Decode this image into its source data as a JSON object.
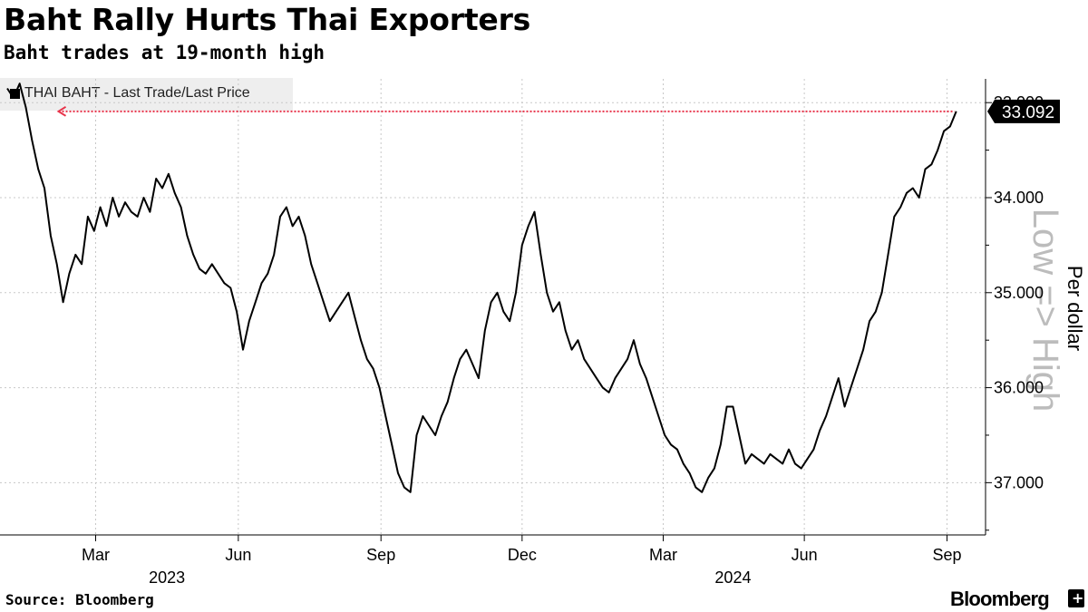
{
  "header": {
    "title": "Baht Rally Hurts Thai Exporters",
    "subtitle": "Baht trades at 19-month high"
  },
  "legend": {
    "label": "THAI BAHT - Last Trade/Last Price"
  },
  "footer": {
    "source": "Source: Bloomberg",
    "brand": "Bloomberg",
    "brand_icon": "+"
  },
  "colors": {
    "line": "#000000",
    "reference": "#e8334a",
    "grid": "#c8c8c8",
    "badge_bg": "#000000",
    "watermark": "#bcbcbc"
  },
  "chart_data": {
    "type": "line",
    "title": "Baht Rally Hurts Thai Exporters",
    "subtitle": "Baht trades at 19-month high",
    "ylabel": "Per dollar",
    "watermark": "Low => High",
    "y_inverted": true,
    "ylim": [
      32.75,
      37.55
    ],
    "yticks": [
      33.0,
      34.0,
      35.0,
      36.0,
      37.0
    ],
    "ytick_labels": [
      "33.000",
      "34.000",
      "35.000",
      "36.000",
      "37.000"
    ],
    "xlim": [
      0,
      618
    ],
    "month_ticks": [
      {
        "label": "Mar",
        "x": 57
      },
      {
        "label": "Jun",
        "x": 149
      },
      {
        "label": "Sep",
        "x": 241
      },
      {
        "label": "Dec",
        "x": 332
      },
      {
        "label": "Mar",
        "x": 423
      },
      {
        "label": "Jun",
        "x": 514
      },
      {
        "label": "Sep",
        "x": 606
      }
    ],
    "year_labels": [
      {
        "label": "2023",
        "x": 103
      },
      {
        "label": "2024",
        "x": 468
      }
    ],
    "last_value": 33.092,
    "last_value_label": "33.092",
    "reference_line": {
      "value": 33.092,
      "x_start": 12,
      "x_end": 612
    },
    "series": [
      {
        "name": "THAI BAHT - Last Trade/Last Price",
        "points": [
          [
            0,
            32.85
          ],
          [
            4,
            32.95
          ],
          [
            8,
            32.8
          ],
          [
            12,
            33.05
          ],
          [
            16,
            33.4
          ],
          [
            20,
            33.7
          ],
          [
            24,
            33.9
          ],
          [
            28,
            34.4
          ],
          [
            32,
            34.7
          ],
          [
            36,
            35.1
          ],
          [
            40,
            34.8
          ],
          [
            44,
            34.6
          ],
          [
            48,
            34.7
          ],
          [
            52,
            34.2
          ],
          [
            56,
            34.35
          ],
          [
            60,
            34.1
          ],
          [
            64,
            34.3
          ],
          [
            68,
            34.0
          ],
          [
            72,
            34.2
          ],
          [
            76,
            34.05
          ],
          [
            80,
            34.15
          ],
          [
            84,
            34.2
          ],
          [
            88,
            34.0
          ],
          [
            92,
            34.15
          ],
          [
            96,
            33.8
          ],
          [
            100,
            33.9
          ],
          [
            104,
            33.75
          ],
          [
            108,
            33.95
          ],
          [
            112,
            34.1
          ],
          [
            116,
            34.4
          ],
          [
            120,
            34.6
          ],
          [
            124,
            34.75
          ],
          [
            128,
            34.8
          ],
          [
            132,
            34.7
          ],
          [
            136,
            34.8
          ],
          [
            140,
            34.9
          ],
          [
            144,
            34.95
          ],
          [
            148,
            35.2
          ],
          [
            152,
            35.6
          ],
          [
            156,
            35.3
          ],
          [
            160,
            35.1
          ],
          [
            164,
            34.9
          ],
          [
            168,
            34.8
          ],
          [
            172,
            34.6
          ],
          [
            176,
            34.2
          ],
          [
            180,
            34.1
          ],
          [
            184,
            34.3
          ],
          [
            188,
            34.2
          ],
          [
            192,
            34.4
          ],
          [
            196,
            34.7
          ],
          [
            200,
            34.9
          ],
          [
            204,
            35.1
          ],
          [
            208,
            35.3
          ],
          [
            212,
            35.2
          ],
          [
            216,
            35.1
          ],
          [
            220,
            35.0
          ],
          [
            224,
            35.25
          ],
          [
            228,
            35.5
          ],
          [
            232,
            35.7
          ],
          [
            236,
            35.8
          ],
          [
            240,
            36.0
          ],
          [
            244,
            36.3
          ],
          [
            248,
            36.6
          ],
          [
            252,
            36.9
          ],
          [
            256,
            37.05
          ],
          [
            260,
            37.1
          ],
          [
            264,
            36.5
          ],
          [
            268,
            36.3
          ],
          [
            272,
            36.4
          ],
          [
            276,
            36.5
          ],
          [
            280,
            36.3
          ],
          [
            284,
            36.15
          ],
          [
            288,
            35.9
          ],
          [
            292,
            35.7
          ],
          [
            296,
            35.6
          ],
          [
            300,
            35.75
          ],
          [
            304,
            35.9
          ],
          [
            308,
            35.4
          ],
          [
            312,
            35.1
          ],
          [
            316,
            35.0
          ],
          [
            320,
            35.2
          ],
          [
            324,
            35.3
          ],
          [
            328,
            35.0
          ],
          [
            332,
            34.5
          ],
          [
            336,
            34.3
          ],
          [
            340,
            34.15
          ],
          [
            344,
            34.6
          ],
          [
            348,
            35.0
          ],
          [
            352,
            35.2
          ],
          [
            356,
            35.1
          ],
          [
            360,
            35.4
          ],
          [
            364,
            35.6
          ],
          [
            368,
            35.5
          ],
          [
            372,
            35.7
          ],
          [
            376,
            35.8
          ],
          [
            380,
            35.9
          ],
          [
            384,
            36.0
          ],
          [
            388,
            36.05
          ],
          [
            392,
            35.9
          ],
          [
            396,
            35.8
          ],
          [
            400,
            35.7
          ],
          [
            404,
            35.5
          ],
          [
            408,
            35.75
          ],
          [
            412,
            35.9
          ],
          [
            416,
            36.1
          ],
          [
            420,
            36.3
          ],
          [
            424,
            36.5
          ],
          [
            428,
            36.6
          ],
          [
            432,
            36.65
          ],
          [
            436,
            36.8
          ],
          [
            440,
            36.9
          ],
          [
            444,
            37.05
          ],
          [
            448,
            37.1
          ],
          [
            452,
            36.95
          ],
          [
            456,
            36.85
          ],
          [
            460,
            36.6
          ],
          [
            464,
            36.2
          ],
          [
            468,
            36.2
          ],
          [
            472,
            36.5
          ],
          [
            476,
            36.8
          ],
          [
            480,
            36.7
          ],
          [
            484,
            36.75
          ],
          [
            488,
            36.8
          ],
          [
            492,
            36.7
          ],
          [
            496,
            36.75
          ],
          [
            500,
            36.8
          ],
          [
            504,
            36.65
          ],
          [
            508,
            36.8
          ],
          [
            512,
            36.85
          ],
          [
            516,
            36.75
          ],
          [
            520,
            36.65
          ],
          [
            524,
            36.45
          ],
          [
            528,
            36.3
          ],
          [
            532,
            36.1
          ],
          [
            536,
            35.9
          ],
          [
            540,
            36.2
          ],
          [
            544,
            36.0
          ],
          [
            548,
            35.8
          ],
          [
            552,
            35.6
          ],
          [
            556,
            35.3
          ],
          [
            560,
            35.2
          ],
          [
            564,
            35.0
          ],
          [
            568,
            34.6
          ],
          [
            572,
            34.2
          ],
          [
            576,
            34.1
          ],
          [
            580,
            33.95
          ],
          [
            584,
            33.9
          ],
          [
            588,
            34.0
          ],
          [
            592,
            33.7
          ],
          [
            596,
            33.65
          ],
          [
            600,
            33.5
          ],
          [
            604,
            33.3
          ],
          [
            608,
            33.25
          ],
          [
            612,
            33.092
          ]
        ]
      }
    ]
  }
}
